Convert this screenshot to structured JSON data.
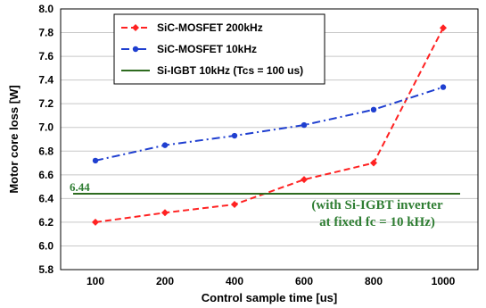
{
  "chart_data": {
    "type": "line",
    "x": [
      100,
      200,
      400,
      600,
      800,
      1000
    ],
    "x_tick_labels": [
      "100",
      "200",
      "400",
      "600",
      "800",
      "1000"
    ],
    "xlabel": "Control sample time [us]",
    "ylabel": "Motor core loss [W]",
    "ylim": [
      5.8,
      8.0
    ],
    "y_ticks": [
      "5.8",
      "6.0",
      "6.2",
      "6.4",
      "6.6",
      "6.8",
      "7.0",
      "7.2",
      "7.4",
      "7.6",
      "7.8",
      "8.0"
    ],
    "grid": true,
    "legend_position": "top-left",
    "series": [
      {
        "name": "SiC-MOSFET 200kHz",
        "color": "#ff2222",
        "style": "dashed",
        "marker": "diamond",
        "values": [
          6.2,
          6.28,
          6.35,
          6.56,
          6.7,
          7.84
        ]
      },
      {
        "name": "SiC-MOSFET 10kHz",
        "color": "#1f3fd0",
        "style": "dashdot",
        "marker": "circle",
        "values": [
          6.72,
          6.85,
          6.93,
          7.02,
          7.15,
          7.34
        ]
      },
      {
        "name": "Si-IGBT 10kHz (Tcs = 100 us)",
        "color": "#2e6b1f",
        "style": "solid",
        "marker": "none",
        "values": [
          6.44,
          6.44,
          6.44,
          6.44,
          6.44,
          6.44
        ]
      }
    ],
    "reference_label": "6.44",
    "annotation_lines": [
      "(with Si-IGBT inverter",
      "at fixed fc = 10 kHz)"
    ]
  }
}
